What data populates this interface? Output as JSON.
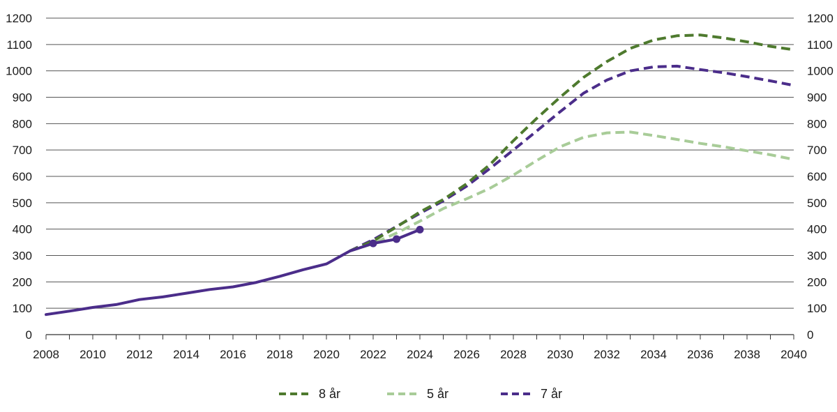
{
  "chart_data": {
    "type": "line",
    "title": "",
    "xlabel": "",
    "ylabel": "",
    "xlim": [
      2008,
      2040
    ],
    "ylim": [
      0,
      1200
    ],
    "x_ticks": [
      "2008",
      "2010",
      "2012",
      "2014",
      "2016",
      "2018",
      "2020",
      "2022",
      "2024",
      "2026",
      "2028",
      "2030",
      "2032",
      "2034",
      "2036",
      "2038",
      "2040"
    ],
    "y_ticks": [
      "0",
      "100",
      "200",
      "300",
      "400",
      "500",
      "600",
      "700",
      "800",
      "900",
      "1000",
      "1100",
      "1200"
    ],
    "grid": "horizontal",
    "legend_position": "bottom",
    "historical": {
      "color": "#4b2d8a",
      "x": [
        2008,
        2009,
        2010,
        2011,
        2012,
        2013,
        2014,
        2015,
        2016,
        2017,
        2018,
        2019,
        2020,
        2021,
        2022,
        2023,
        2024
      ],
      "y": [
        76,
        89,
        103,
        114,
        133,
        143,
        157,
        171,
        181,
        198,
        221,
        246,
        268,
        317,
        346,
        362,
        398
      ],
      "markers_x": [
        2022,
        2023,
        2024
      ]
    },
    "series": [
      {
        "name": "8 år",
        "color": "#4e7a2e",
        "x": [
          2021,
          2022,
          2023,
          2024,
          2025,
          2026,
          2027,
          2028,
          2029,
          2030,
          2031,
          2032,
          2033,
          2034,
          2035,
          2036,
          2037,
          2038,
          2039,
          2040
        ],
        "y": [
          317,
          355,
          408,
          465,
          512,
          572,
          645,
          735,
          820,
          900,
          975,
          1035,
          1085,
          1117,
          1133,
          1136,
          1125,
          1110,
          1093,
          1080
        ]
      },
      {
        "name": "5 år",
        "color": "#a8cc98",
        "x": [
          2021,
          2022,
          2023,
          2024,
          2025,
          2026,
          2027,
          2028,
          2029,
          2030,
          2031,
          2032,
          2033,
          2034,
          2035,
          2036,
          2037,
          2038,
          2039,
          2040
        ],
        "y": [
          317,
          345,
          385,
          430,
          478,
          515,
          555,
          605,
          660,
          712,
          748,
          765,
          768,
          755,
          740,
          725,
          712,
          697,
          682,
          664
        ]
      },
      {
        "name": "7 år",
        "color": "#4b2d8a",
        "x": [
          2021,
          2022,
          2023,
          2024,
          2025,
          2026,
          2027,
          2028,
          2029,
          2030,
          2031,
          2032,
          2033,
          2034,
          2035,
          2036,
          2037,
          2038,
          2039,
          2040
        ],
        "y": [
          317,
          360,
          410,
          460,
          507,
          563,
          630,
          700,
          772,
          845,
          915,
          965,
          1000,
          1015,
          1018,
          1005,
          993,
          978,
          962,
          945
        ]
      }
    ]
  }
}
